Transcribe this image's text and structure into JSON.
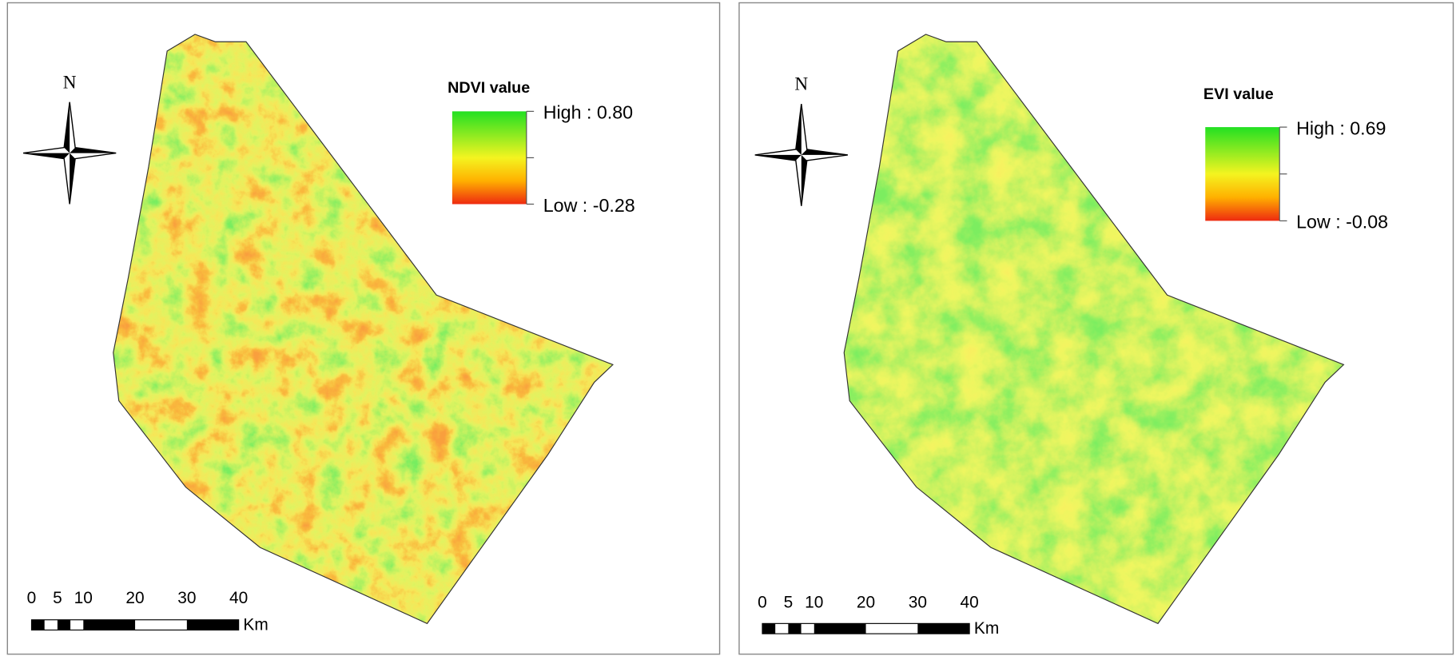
{
  "panels": [
    {
      "legend": {
        "title": "NDVI value",
        "high": "High : 0.80",
        "low": "Low : -0.28"
      },
      "north": "N",
      "scale": {
        "labels": [
          "0",
          "5",
          "10",
          "20",
          "30",
          "40"
        ],
        "unit": "Km"
      }
    },
    {
      "legend": {
        "title": "EVI value",
        "high": "High : 0.69",
        "low": "Low : -0.08"
      },
      "north": "N",
      "scale": {
        "labels": [
          "0",
          "5",
          "10",
          "20",
          "30",
          "40"
        ],
        "unit": "Km"
      }
    }
  ]
}
